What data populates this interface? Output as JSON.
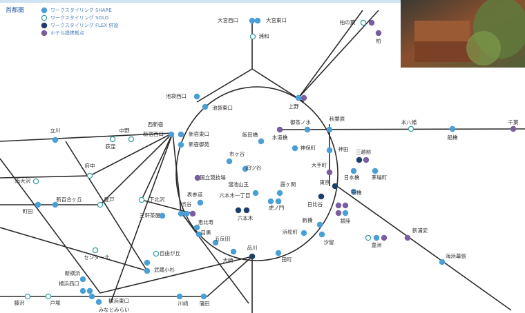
{
  "legend": {
    "title": "首都圏",
    "items": [
      "ワークスタイリング SHARE",
      "ワークスタイリング SOLO",
      "ワークスタイリング FLEX 併設",
      "ホテル提携拠点"
    ]
  },
  "stations": [
    "大宮西口",
    "大宮東口",
    "浦和",
    "柏の葉",
    "柏",
    "池袋西口",
    "池袋東口",
    "上野",
    "御茶ノ水",
    "秋葉原",
    "本八幡",
    "船橋",
    "千葉",
    "西新宿",
    "新宿西口",
    "新宿東口",
    "新宿御苑",
    "立川",
    "中野",
    "荻窪",
    "府中",
    "南大沢",
    "新百合ヶ丘",
    "登戸",
    "町田",
    "下北沢",
    "三軒茶屋",
    "渋谷",
    "表参道",
    "恵比寿",
    "目黒",
    "五反田",
    "大崎",
    "品川",
    "田町",
    "浜松町",
    "新橋",
    "汐留",
    "虎ノ門",
    "国立競技場",
    "四ツ谷",
    "市ヶ谷",
    "飯田橋",
    "水道橋",
    "神保町",
    "神田",
    "大手町",
    "三越前",
    "日本橋",
    "茅場町",
    "東京",
    "京橋",
    "溜池山王",
    "霞ヶ関",
    "六本木一丁目",
    "六本木",
    "日比谷",
    "銀座",
    "新浦安",
    "豊洲",
    "海浜幕張",
    "センター北",
    "自由が丘",
    "武蔵小杉",
    "新横浜",
    "横浜西口",
    "横浜東口",
    "みなとみらい",
    "藤沢",
    "戸塚",
    "川崎",
    "蒲田"
  ]
}
